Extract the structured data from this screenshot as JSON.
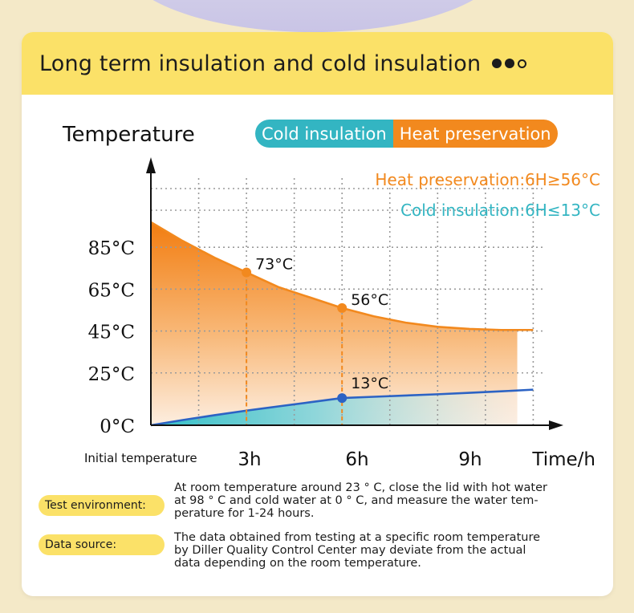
{
  "header": {
    "title": "Long term insulation and cold insulation"
  },
  "legend": {
    "cold": "Cold insulation",
    "heat": "Heat preservation"
  },
  "colors": {
    "heat": "#f2891e",
    "cold": "#33b5c2",
    "cold_line": "#2c63c4",
    "header_bg": "#fbe168"
  },
  "chart_data": {
    "type": "line",
    "title": "Temperature",
    "xlabel": "Time/h",
    "ylabel": "",
    "x_tick_labels": [
      "Initial temperature",
      "3h",
      "6h",
      "9h"
    ],
    "y_tick_labels": [
      "0°C",
      "25°C",
      "45°C",
      "65°C",
      "85°C"
    ],
    "y_tick_values": [
      0,
      25,
      45,
      65,
      85
    ],
    "xlim": [
      0,
      12
    ],
    "grid": true,
    "series": [
      {
        "name": "Heat preservation",
        "color": "#f2891e",
        "x": [
          0,
          1,
          2,
          3,
          4,
          5,
          6,
          7,
          8,
          9,
          10,
          11,
          12
        ],
        "y": [
          97,
          88,
          80,
          73,
          66,
          61,
          56,
          52,
          49,
          47,
          46,
          45.5,
          45.5
        ]
      },
      {
        "name": "Cold insulation",
        "color": "#2c63c4",
        "x": [
          0,
          1,
          2,
          3,
          4,
          5,
          6,
          7,
          8,
          9,
          10,
          11,
          12
        ],
        "y": [
          0,
          2.5,
          4.8,
          7,
          9,
          11,
          13,
          13.6,
          14.2,
          14.8,
          15.5,
          16.2,
          17
        ]
      }
    ],
    "annotations": [
      {
        "text": "73°C",
        "x": 3,
        "y": 73,
        "series": "Heat preservation"
      },
      {
        "text": "56°C",
        "x": 6,
        "y": 56,
        "series": "Heat preservation"
      },
      {
        "text": "13°C",
        "x": 6,
        "y": 13,
        "series": "Cold insulation"
      }
    ],
    "callouts": [
      {
        "text": "Heat preservation:6H≥56°C",
        "color": "#f2891e"
      },
      {
        "text": "Cold insulation:6H≤13°C",
        "color": "#33b5c2"
      }
    ]
  },
  "notes": [
    {
      "tag": "Test environment:",
      "lines": [
        "At room temperature around 23 ° C, close the lid with hot water",
        "at 98 ° C and cold water at 0 ° C, and measure the water tem-",
        "perature for 1-24 hours."
      ]
    },
    {
      "tag": "Data source:",
      "lines": [
        "The data obtained from testing at a specific room temperature",
        "by Diller Quality Control Center may deviate from the actual",
        "data depending on the room temperature."
      ]
    }
  ]
}
